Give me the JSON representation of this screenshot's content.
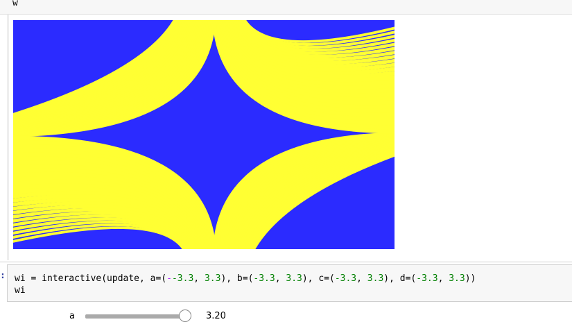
{
  "top_cell": {
    "code": "w"
  },
  "plot": {
    "colors": {
      "low": "#2b2bff",
      "high": "#ffff33"
    }
  },
  "code_cell": {
    "prompt": ":",
    "line1": {
      "prefix": "wi = interactive(update, a=(",
      "v1": "-3.3",
      "sep1": ", ",
      "v2": "3.3",
      "mid1": "), b=(",
      "v3": "-3.3",
      "sep2": ", ",
      "v4": "3.3",
      "mid2": "), c=(",
      "v5": "-3.3",
      "sep3": ", ",
      "v6": "3.3",
      "mid3": "), d=(",
      "v7": "-3.3",
      "sep4": ", ",
      "v8": "3.3",
      "suffix": "))"
    },
    "line2": "wi"
  },
  "slider": {
    "label": "a",
    "value_text": "3.20",
    "min": -3.3,
    "max": 3.3,
    "value": 3.2
  }
}
